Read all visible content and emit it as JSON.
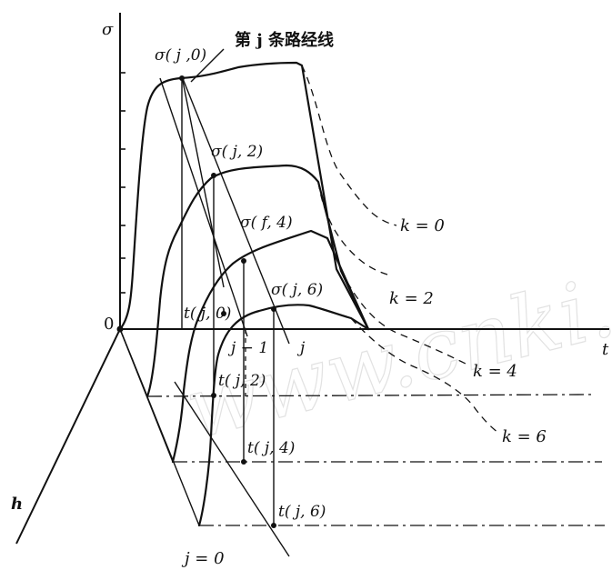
{
  "labels": {
    "sigma_axis": "σ",
    "t_axis": "t",
    "h_axis": "h",
    "origin": "0",
    "route_title": "第 j 条路经线",
    "sigma_j0": "σ( j ,0)",
    "sigma_j2": "σ( j, 2)",
    "sigma_f4": "σ( f, 4)",
    "sigma_j6": "σ( j, 6)",
    "t_j0": "t( j, 0)",
    "t_j2": "t( j, 2)",
    "t_j4": "t( j, 4)",
    "t_j6": "t( j, 6)",
    "j_minus_1": "j − 1",
    "j": "j",
    "j_eq_0": "j = 0",
    "k0": "k = 0",
    "k2": "k = 2",
    "k4": "k = 4",
    "k6": "k = 6"
  },
  "watermark": "www.cnki.net",
  "curves": [
    {
      "k": "0"
    },
    {
      "k": "2"
    },
    {
      "k": "4"
    },
    {
      "k": "6"
    }
  ]
}
